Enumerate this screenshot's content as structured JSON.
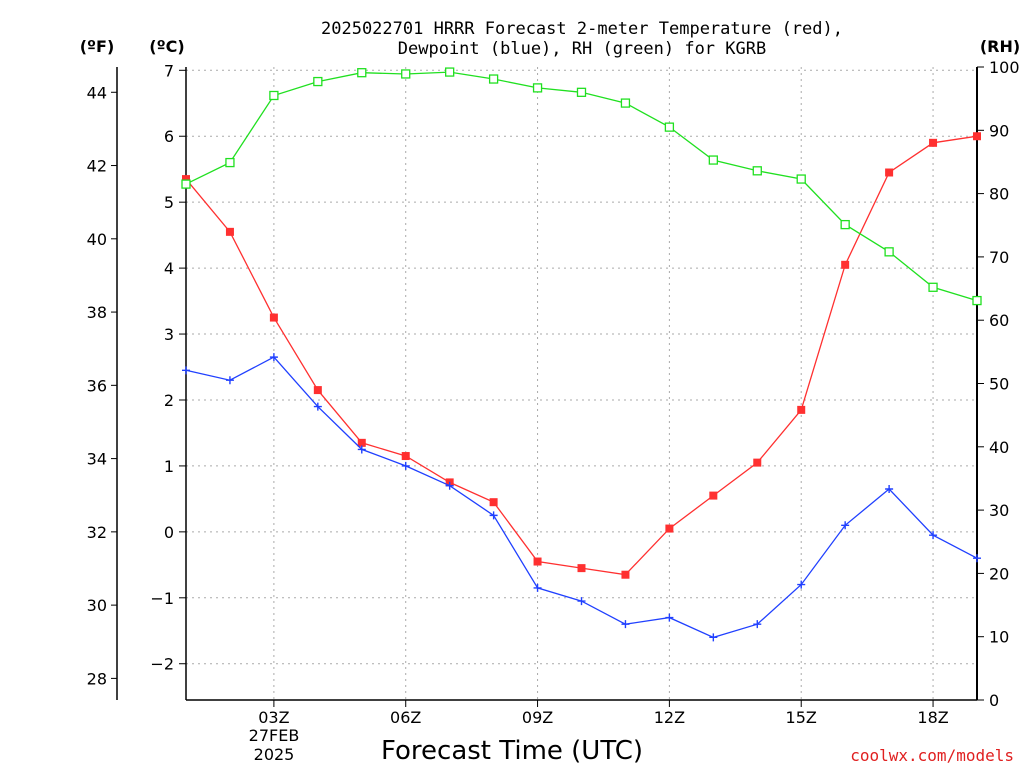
{
  "chart_data": {
    "type": "line",
    "title_line1": "2025022701 HRRR Forecast 2-meter Temperature (red),",
    "title_line2": "Dewpoint (blue), RH (green) for KGRB",
    "xlabel": "Forecast Time (UTC)",
    "x_date_line1": "27FEB",
    "x_date_line2": "2025",
    "credit": "coolwx.com/models",
    "x_hours": [
      1,
      2,
      3,
      4,
      5,
      6,
      7,
      8,
      9,
      10,
      11,
      12,
      13,
      14,
      15,
      16,
      17,
      18,
      19
    ],
    "xlim": [
      1,
      19
    ],
    "x_ticks": [
      {
        "hour": 3,
        "label": "03Z"
      },
      {
        "hour": 6,
        "label": "06Z"
      },
      {
        "hour": 9,
        "label": "09Z"
      },
      {
        "hour": 12,
        "label": "12Z"
      },
      {
        "hour": 15,
        "label": "15Z"
      },
      {
        "hour": 18,
        "label": "18Z"
      }
    ],
    "axis_celsius": {
      "label": "(ºC)",
      "ylim": [
        -2.55,
        7.05
      ],
      "ticks": [
        {
          "v": 7,
          "label": "7"
        },
        {
          "v": 6,
          "label": "6"
        },
        {
          "v": 5,
          "label": "5"
        },
        {
          "v": 4,
          "label": "4"
        },
        {
          "v": 3,
          "label": "3"
        },
        {
          "v": 2,
          "label": "2"
        },
        {
          "v": 1,
          "label": "1"
        },
        {
          "v": 0,
          "label": "0"
        },
        {
          "v": -1,
          "label": "−1"
        },
        {
          "v": -2,
          "label": "−2"
        }
      ]
    },
    "axis_fahrenheit": {
      "label": "(ºF)",
      "ticks": [
        {
          "v": 44,
          "label": "44"
        },
        {
          "v": 42,
          "label": "42"
        },
        {
          "v": 40,
          "label": "40"
        },
        {
          "v": 38,
          "label": "38"
        },
        {
          "v": 36,
          "label": "36"
        },
        {
          "v": 34,
          "label": "34"
        },
        {
          "v": 32,
          "label": "32"
        },
        {
          "v": 30,
          "label": "30"
        },
        {
          "v": 28,
          "label": "28"
        }
      ]
    },
    "axis_rh": {
      "label": "(RH)",
      "ylim": [
        0,
        100
      ],
      "ticks": [
        {
          "v": 100,
          "label": "100"
        },
        {
          "v": 90,
          "label": "90"
        },
        {
          "v": 80,
          "label": "80"
        },
        {
          "v": 70,
          "label": "70"
        },
        {
          "v": 60,
          "label": "60"
        },
        {
          "v": 50,
          "label": "50"
        },
        {
          "v": 40,
          "label": "40"
        },
        {
          "v": 30,
          "label": "30"
        },
        {
          "v": 20,
          "label": "20"
        },
        {
          "v": 10,
          "label": "10"
        },
        {
          "v": 0,
          "label": "0"
        }
      ]
    },
    "grid": true,
    "series": [
      {
        "key": "temperature",
        "color": "#ff3030",
        "marker": "filled-square",
        "axis": "celsius",
        "values": [
          5.35,
          4.55,
          3.25,
          2.15,
          1.35,
          1.15,
          0.75,
          0.45,
          -0.45,
          -0.55,
          -0.65,
          0.05,
          0.55,
          1.05,
          1.85,
          4.05,
          5.45,
          5.9,
          6.0
        ]
      },
      {
        "key": "dewpoint",
        "color": "#2040ff",
        "marker": "plus",
        "axis": "celsius",
        "values": [
          2.45,
          2.3,
          2.65,
          1.9,
          1.25,
          1.0,
          0.7,
          0.25,
          -0.85,
          -1.05,
          -1.4,
          -1.3,
          -1.6,
          -1.4,
          -0.8,
          0.1,
          0.65,
          -0.05,
          -0.4
        ]
      },
      {
        "key": "rh",
        "color": "#20e020",
        "marker": "open-square",
        "axis": "rh",
        "values": [
          81.5,
          84.9,
          95.5,
          97.7,
          99.1,
          98.9,
          99.2,
          98.1,
          96.7,
          96.0,
          94.3,
          90.5,
          85.3,
          83.6,
          82.3,
          75.1,
          70.8,
          65.2,
          63.1
        ]
      }
    ]
  }
}
